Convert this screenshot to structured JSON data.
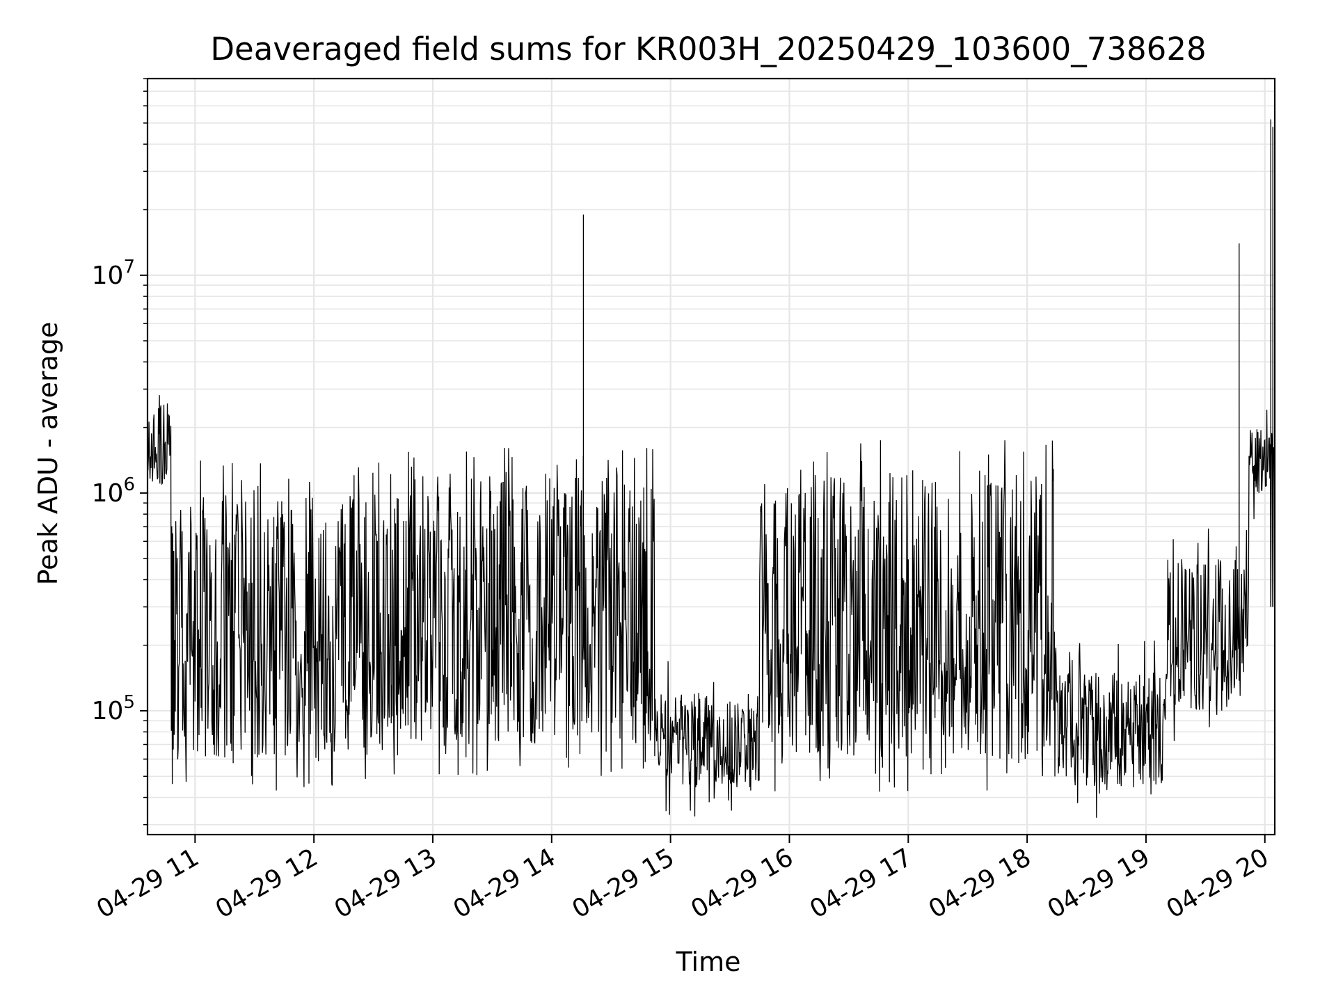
{
  "chart_data": {
    "type": "line",
    "title": "Deaveraged field sums for KR003H_20250429_103600_738628",
    "xlabel": "Time",
    "ylabel": "Peak ADU - average",
    "x_scale": "time",
    "y_scale": "log",
    "xlim": [
      "2025-04-29 10:36",
      "2025-04-29 20:05"
    ],
    "ylim": [
      27000,
      80000000
    ],
    "x_ticks": [
      "04-29 11",
      "04-29 12",
      "04-29 13",
      "04-29 14",
      "04-29 15",
      "04-29 16",
      "04-29 17",
      "04-29 18",
      "04-29 19",
      "04-29 20"
    ],
    "y_ticks": [
      {
        "value": 100000,
        "base": "10",
        "exp": "5"
      },
      {
        "value": 1000000,
        "base": "10",
        "exp": "6"
      },
      {
        "value": 10000000,
        "base": "10",
        "exp": "7"
      }
    ],
    "grid": true,
    "series": [
      {
        "color": "#000000",
        "style": "dense noisy line alternating between a high band and a low band",
        "segments": [
          {
            "start": "2025-04-29 10:36",
            "end": "2025-04-29 10:48",
            "low": 1100000,
            "high": 3000000
          },
          {
            "start": "2025-04-29 10:48",
            "end": "2025-04-29 12:40",
            "low": 60000,
            "high": 1000000
          },
          {
            "start": "2025-04-29 12:40",
            "end": "2025-04-29 14:52",
            "low": 70000,
            "high": 1200000
          },
          {
            "start": "2025-04-29 14:52",
            "end": "2025-04-29 15:45",
            "low": 45000,
            "high": 120000
          },
          {
            "start": "2025-04-29 15:45",
            "end": "2025-04-29 18:15",
            "low": 60000,
            "high": 1300000
          },
          {
            "start": "2025-04-29 18:15",
            "end": "2025-04-29 19:10",
            "low": 45000,
            "high": 150000
          },
          {
            "start": "2025-04-29 19:10",
            "end": "2025-04-29 19:52",
            "low": 100000,
            "high": 500000
          },
          {
            "start": "2025-04-29 19:52",
            "end": "2025-04-29 20:05",
            "low": 1000000,
            "high": 2000000
          }
        ],
        "spikes": [
          {
            "x": "2025-04-29 14:16",
            "y": 19000000
          },
          {
            "x": "2025-04-29 19:47",
            "y": 14000000
          },
          {
            "x": "2025-04-29 20:03",
            "y": 52000000
          },
          {
            "x": "2025-04-29 20:04",
            "y": 48000000
          }
        ]
      }
    ]
  }
}
